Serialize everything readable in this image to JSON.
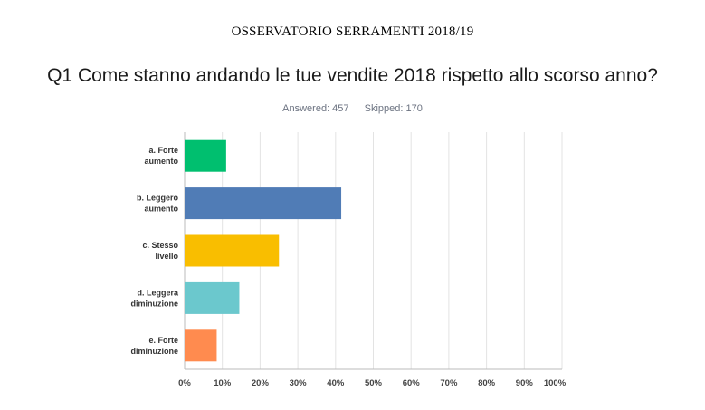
{
  "header": {
    "survey_title": "OSSERVATORIO SERRAMENTI 2018/19",
    "question": "Q1 Come stanno andando le tue vendite 2018 rispetto allo scorso anno?",
    "answered": "Answered: 457",
    "skipped": "Skipped: 170"
  },
  "chart_data": {
    "type": "bar",
    "orientation": "horizontal",
    "categories": [
      [
        "a. Forte",
        "aumento"
      ],
      [
        "b. Leggero",
        "aumento"
      ],
      [
        "c. Stesso",
        "livello"
      ],
      [
        "d. Leggera",
        "diminuzione"
      ],
      [
        "e. Forte",
        "diminuzione"
      ]
    ],
    "values": [
      11,
      41.5,
      25,
      14.5,
      8.5
    ],
    "colors": [
      "#00BF6F",
      "#507CB6",
      "#F9BE00",
      "#6BC8CD",
      "#FF8B4F"
    ],
    "xlim": [
      0,
      100
    ],
    "x_ticks": [
      "0%",
      "10%",
      "20%",
      "30%",
      "40%",
      "50%",
      "60%",
      "70%",
      "80%",
      "90%",
      "100%"
    ],
    "grid": true,
    "legend": "none"
  }
}
